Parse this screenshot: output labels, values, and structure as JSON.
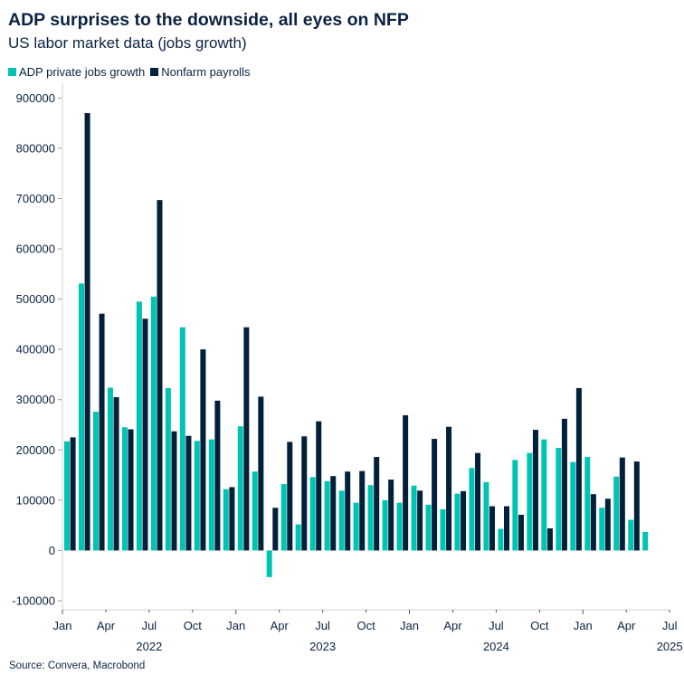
{
  "chart_data": {
    "type": "bar",
    "title": "ADP surprises to the downside, all eyes on NFP",
    "subtitle": "US labor market data (jobs growth)",
    "source": "Source: Convera, Macrobond",
    "legend_position": "top-left",
    "grid": false,
    "ylim": [
      -118000,
      915000
    ],
    "yticks": [
      -100000,
      0,
      100000,
      200000,
      300000,
      400000,
      500000,
      600000,
      700000,
      800000,
      900000
    ],
    "ytick_labels": [
      "-100000",
      "0",
      "100000",
      "200000",
      "300000",
      "400000",
      "500000",
      "600000",
      "700000",
      "800000",
      "900000"
    ],
    "xtick_labels": [
      "Jan",
      "Apr",
      "Jul",
      "Oct",
      "Jan",
      "Apr",
      "Jul",
      "Oct",
      "Jan",
      "Apr",
      "Jul",
      "Oct",
      "Jan",
      "Apr",
      "Jul"
    ],
    "year_labels": [
      "2022",
      "2023",
      "2024",
      "2025"
    ],
    "categories": [
      "2022-01",
      "2022-02",
      "2022-03",
      "2022-04",
      "2022-05",
      "2022-06",
      "2022-07",
      "2022-08",
      "2022-09",
      "2022-10",
      "2022-11",
      "2022-12",
      "2023-01",
      "2023-02",
      "2023-03",
      "2023-04",
      "2023-05",
      "2023-06",
      "2023-07",
      "2023-08",
      "2023-09",
      "2023-10",
      "2023-11",
      "2023-12",
      "2024-01",
      "2024-02",
      "2024-03",
      "2024-04",
      "2024-05",
      "2024-06",
      "2024-07",
      "2024-08",
      "2024-09",
      "2024-10",
      "2024-11",
      "2024-12",
      "2025-01",
      "2025-02",
      "2025-03",
      "2025-04",
      "2025-05"
    ],
    "series": [
      {
        "name": "ADP private jobs growth",
        "color": "#00c4b3",
        "values": [
          217000,
          531000,
          276000,
          324000,
          245000,
          495000,
          505000,
          323000,
          444000,
          218000,
          221000,
          122000,
          247000,
          157000,
          -53000,
          132000,
          52000,
          146000,
          138000,
          119000,
          95000,
          130000,
          100000,
          95000,
          129000,
          91000,
          82000,
          113000,
          164000,
          136000,
          43000,
          180000,
          194000,
          221000,
          204000,
          176000,
          186000,
          85000,
          147000,
          61000,
          37000
        ]
      },
      {
        "name": "Nonfarm payrolls",
        "color": "#03203a",
        "values": [
          225000,
          870000,
          471000,
          305000,
          241000,
          461000,
          697000,
          237000,
          228000,
          400000,
          298000,
          126000,
          444000,
          306000,
          85000,
          216000,
          227000,
          257000,
          148000,
          157000,
          158000,
          186000,
          141000,
          269000,
          119000,
          222000,
          246000,
          118000,
          194000,
          88000,
          88000,
          71000,
          240000,
          44000,
          262000,
          323000,
          112000,
          103000,
          185000,
          177000,
          null
        ]
      }
    ]
  }
}
